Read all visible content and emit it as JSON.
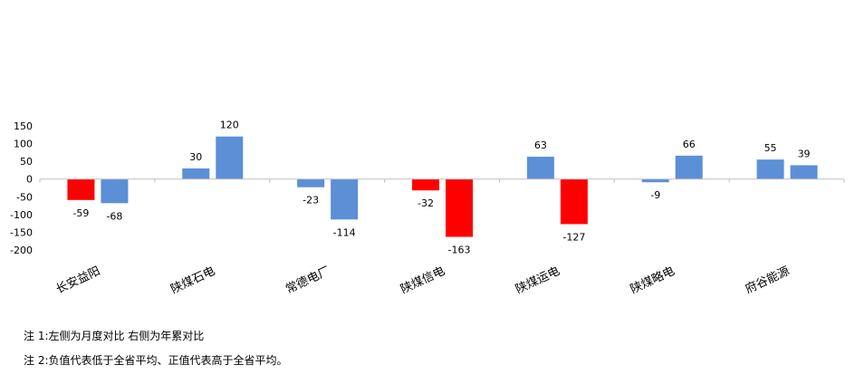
{
  "chart_data": {
    "type": "bar",
    "categories": [
      "长安益阳",
      "陕煤石电",
      "常德电厂",
      "陕煤信电",
      "陕煤运电",
      "陕煤略电",
      "府谷能源"
    ],
    "series": [
      {
        "values": [
          -59,
          30,
          -23,
          -32,
          63,
          -9,
          55
        ]
      },
      {
        "values": [
          -68,
          120,
          -114,
          -163,
          -127,
          66,
          39
        ]
      }
    ],
    "ylim": [
      -200,
      150
    ],
    "yticks": [
      150,
      100,
      50,
      0,
      -50,
      -100,
      -150,
      -200
    ],
    "positive_color": "#5B8FD6",
    "negative_highlight_color": "#FF0000",
    "highlighted": [
      {
        "series": 0,
        "category": 0
      },
      {
        "series": 0,
        "category": 3
      },
      {
        "series": 1,
        "category": 3
      },
      {
        "series": 1,
        "category": 4
      }
    ],
    "grid": false,
    "legend": "none"
  },
  "notes": {
    "note1": "注 1:左侧为月度对比  右侧为年累对比",
    "note2": "注 2:负值代表低于全省平均、正值代表高于全省平均。"
  }
}
